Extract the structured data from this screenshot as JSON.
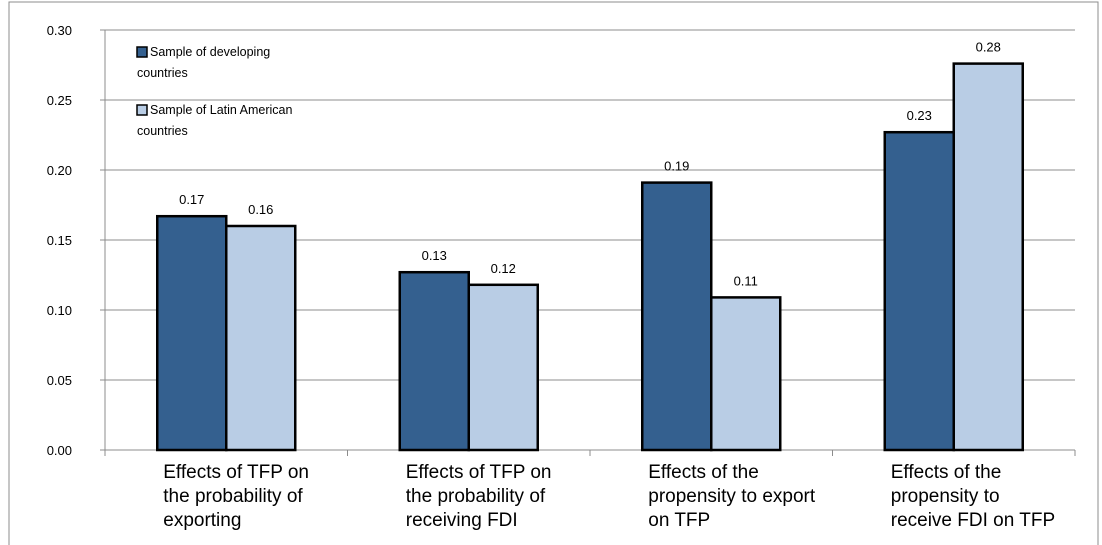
{
  "chart_data": {
    "type": "bar",
    "categories": [
      [
        "Effects of TFP on",
        "the probability of",
        "exporting"
      ],
      [
        "Effects of TFP on",
        "the probability of",
        "receiving FDI"
      ],
      [
        "Effects of the",
        "propensity to export",
        "on TFP"
      ],
      [
        "Effects of the",
        "propensity to",
        "receive FDI on TFP"
      ]
    ],
    "series": [
      {
        "name": [
          "Sample of developing",
          "countries"
        ],
        "color": "#34608f",
        "values": [
          0.167,
          0.127,
          0.191,
          0.227
        ],
        "labels": [
          "0.17",
          "0.13",
          "0.19",
          "0.23"
        ]
      },
      {
        "name": [
          "Sample of Latin American",
          "countries"
        ],
        "color": "#b9cde5",
        "values": [
          0.16,
          0.118,
          0.109,
          0.276
        ],
        "labels": [
          "0.16",
          "0.12",
          "0.11",
          "0.28"
        ]
      }
    ],
    "ylim": [
      0,
      0.3
    ],
    "yticks": [
      "0.00",
      "0.05",
      "0.10",
      "0.15",
      "0.20",
      "0.25",
      "0.30"
    ],
    "grid": true,
    "legend_position": "top-left",
    "title": "",
    "xlabel": "",
    "ylabel": ""
  }
}
